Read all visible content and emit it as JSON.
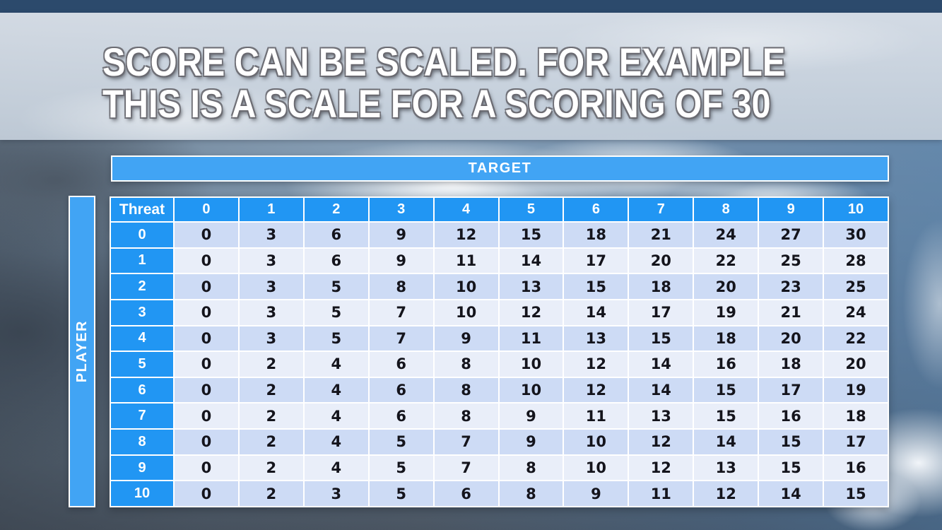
{
  "slide": {
    "title_line1": "SCORE CAN BE SCALED. FOR EXAMPLE",
    "title_line2": "THIS IS A SCALE FOR A SCORING OF 30"
  },
  "matrix": {
    "top_axis_label": "TARGET",
    "left_axis_label": "PLAYER",
    "corner_label": "Threat",
    "column_headers": [
      "0",
      "1",
      "2",
      "3",
      "4",
      "5",
      "6",
      "7",
      "8",
      "9",
      "10"
    ],
    "row_headers": [
      "0",
      "1",
      "2",
      "3",
      "4",
      "5",
      "6",
      "7",
      "8",
      "9",
      "10"
    ],
    "rows": [
      [
        0,
        3,
        6,
        9,
        12,
        15,
        18,
        21,
        24,
        27,
        30
      ],
      [
        0,
        3,
        6,
        9,
        11,
        14,
        17,
        20,
        22,
        25,
        28
      ],
      [
        0,
        3,
        5,
        8,
        10,
        13,
        15,
        18,
        20,
        23,
        25
      ],
      [
        0,
        3,
        5,
        7,
        10,
        12,
        14,
        17,
        19,
        21,
        24
      ],
      [
        0,
        3,
        5,
        7,
        9,
        11,
        13,
        15,
        18,
        20,
        22
      ],
      [
        0,
        2,
        4,
        6,
        8,
        10,
        12,
        14,
        16,
        18,
        20
      ],
      [
        0,
        2,
        4,
        6,
        8,
        10,
        12,
        14,
        15,
        17,
        19
      ],
      [
        0,
        2,
        4,
        6,
        8,
        9,
        11,
        13,
        15,
        16,
        18
      ],
      [
        0,
        2,
        4,
        5,
        7,
        9,
        10,
        12,
        14,
        15,
        17
      ],
      [
        0,
        2,
        4,
        5,
        7,
        8,
        10,
        12,
        13,
        15,
        16
      ],
      [
        0,
        2,
        3,
        5,
        6,
        8,
        9,
        11,
        12,
        14,
        15
      ]
    ]
  },
  "colors": {
    "header_blue": "#2196f3",
    "axis_bar_blue": "#41a4f4",
    "row_even": "#cddbf5",
    "row_odd": "#e9eef9",
    "grid_line": "#ffffff",
    "title_text": "#ffffff"
  }
}
